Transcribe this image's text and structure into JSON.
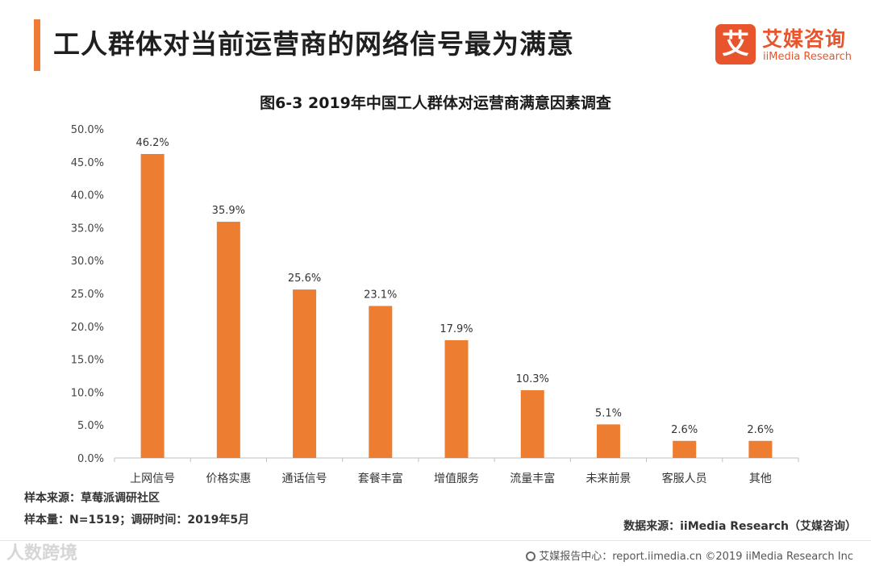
{
  "header": {
    "title": "工人群体对当前运营商的网络信号最为满意",
    "brand_mark": "艾",
    "brand_cn": "艾媒咨询",
    "brand_en": "iiMedia Research"
  },
  "colors": {
    "accent": "#ee7a33",
    "bar": "#ed7d31",
    "brand": "#e8542c"
  },
  "chart_data": {
    "type": "bar",
    "title": "图6-3 2019年中国工人群体对运营商满意因素调查",
    "categories": [
      "上网信号",
      "价格实惠",
      "通话信号",
      "套餐丰富",
      "增值服务",
      "流量丰富",
      "未来前景",
      "客服人员",
      "其他"
    ],
    "values": [
      46.2,
      35.9,
      25.6,
      23.1,
      17.9,
      10.3,
      5.1,
      2.6,
      2.6
    ],
    "value_labels": [
      "46.2%",
      "35.9%",
      "25.6%",
      "23.1%",
      "17.9%",
      "10.3%",
      "5.1%",
      "2.6%",
      "2.6%"
    ],
    "ylim": [
      0,
      50
    ],
    "yticks": [
      0,
      5,
      10,
      15,
      20,
      25,
      30,
      35,
      40,
      45,
      50
    ],
    "ytick_labels": [
      "0.0%",
      "5.0%",
      "10.0%",
      "15.0%",
      "20.0%",
      "25.0%",
      "30.0%",
      "35.0%",
      "40.0%",
      "45.0%",
      "50.0%"
    ],
    "xlabel": "",
    "ylabel": "",
    "grid": false
  },
  "notes": {
    "sample_source": "样本来源：草莓派调研社区",
    "sample_size": "样本量：N=1519；调研时间：2019年5月"
  },
  "source": "数据来源：iiMedia Research（艾媒咨询）",
  "footer": {
    "text": "艾媒报告中心：report.iimedia.cn  ©2019  iiMedia Research Inc"
  },
  "watermark": "人数跨境"
}
